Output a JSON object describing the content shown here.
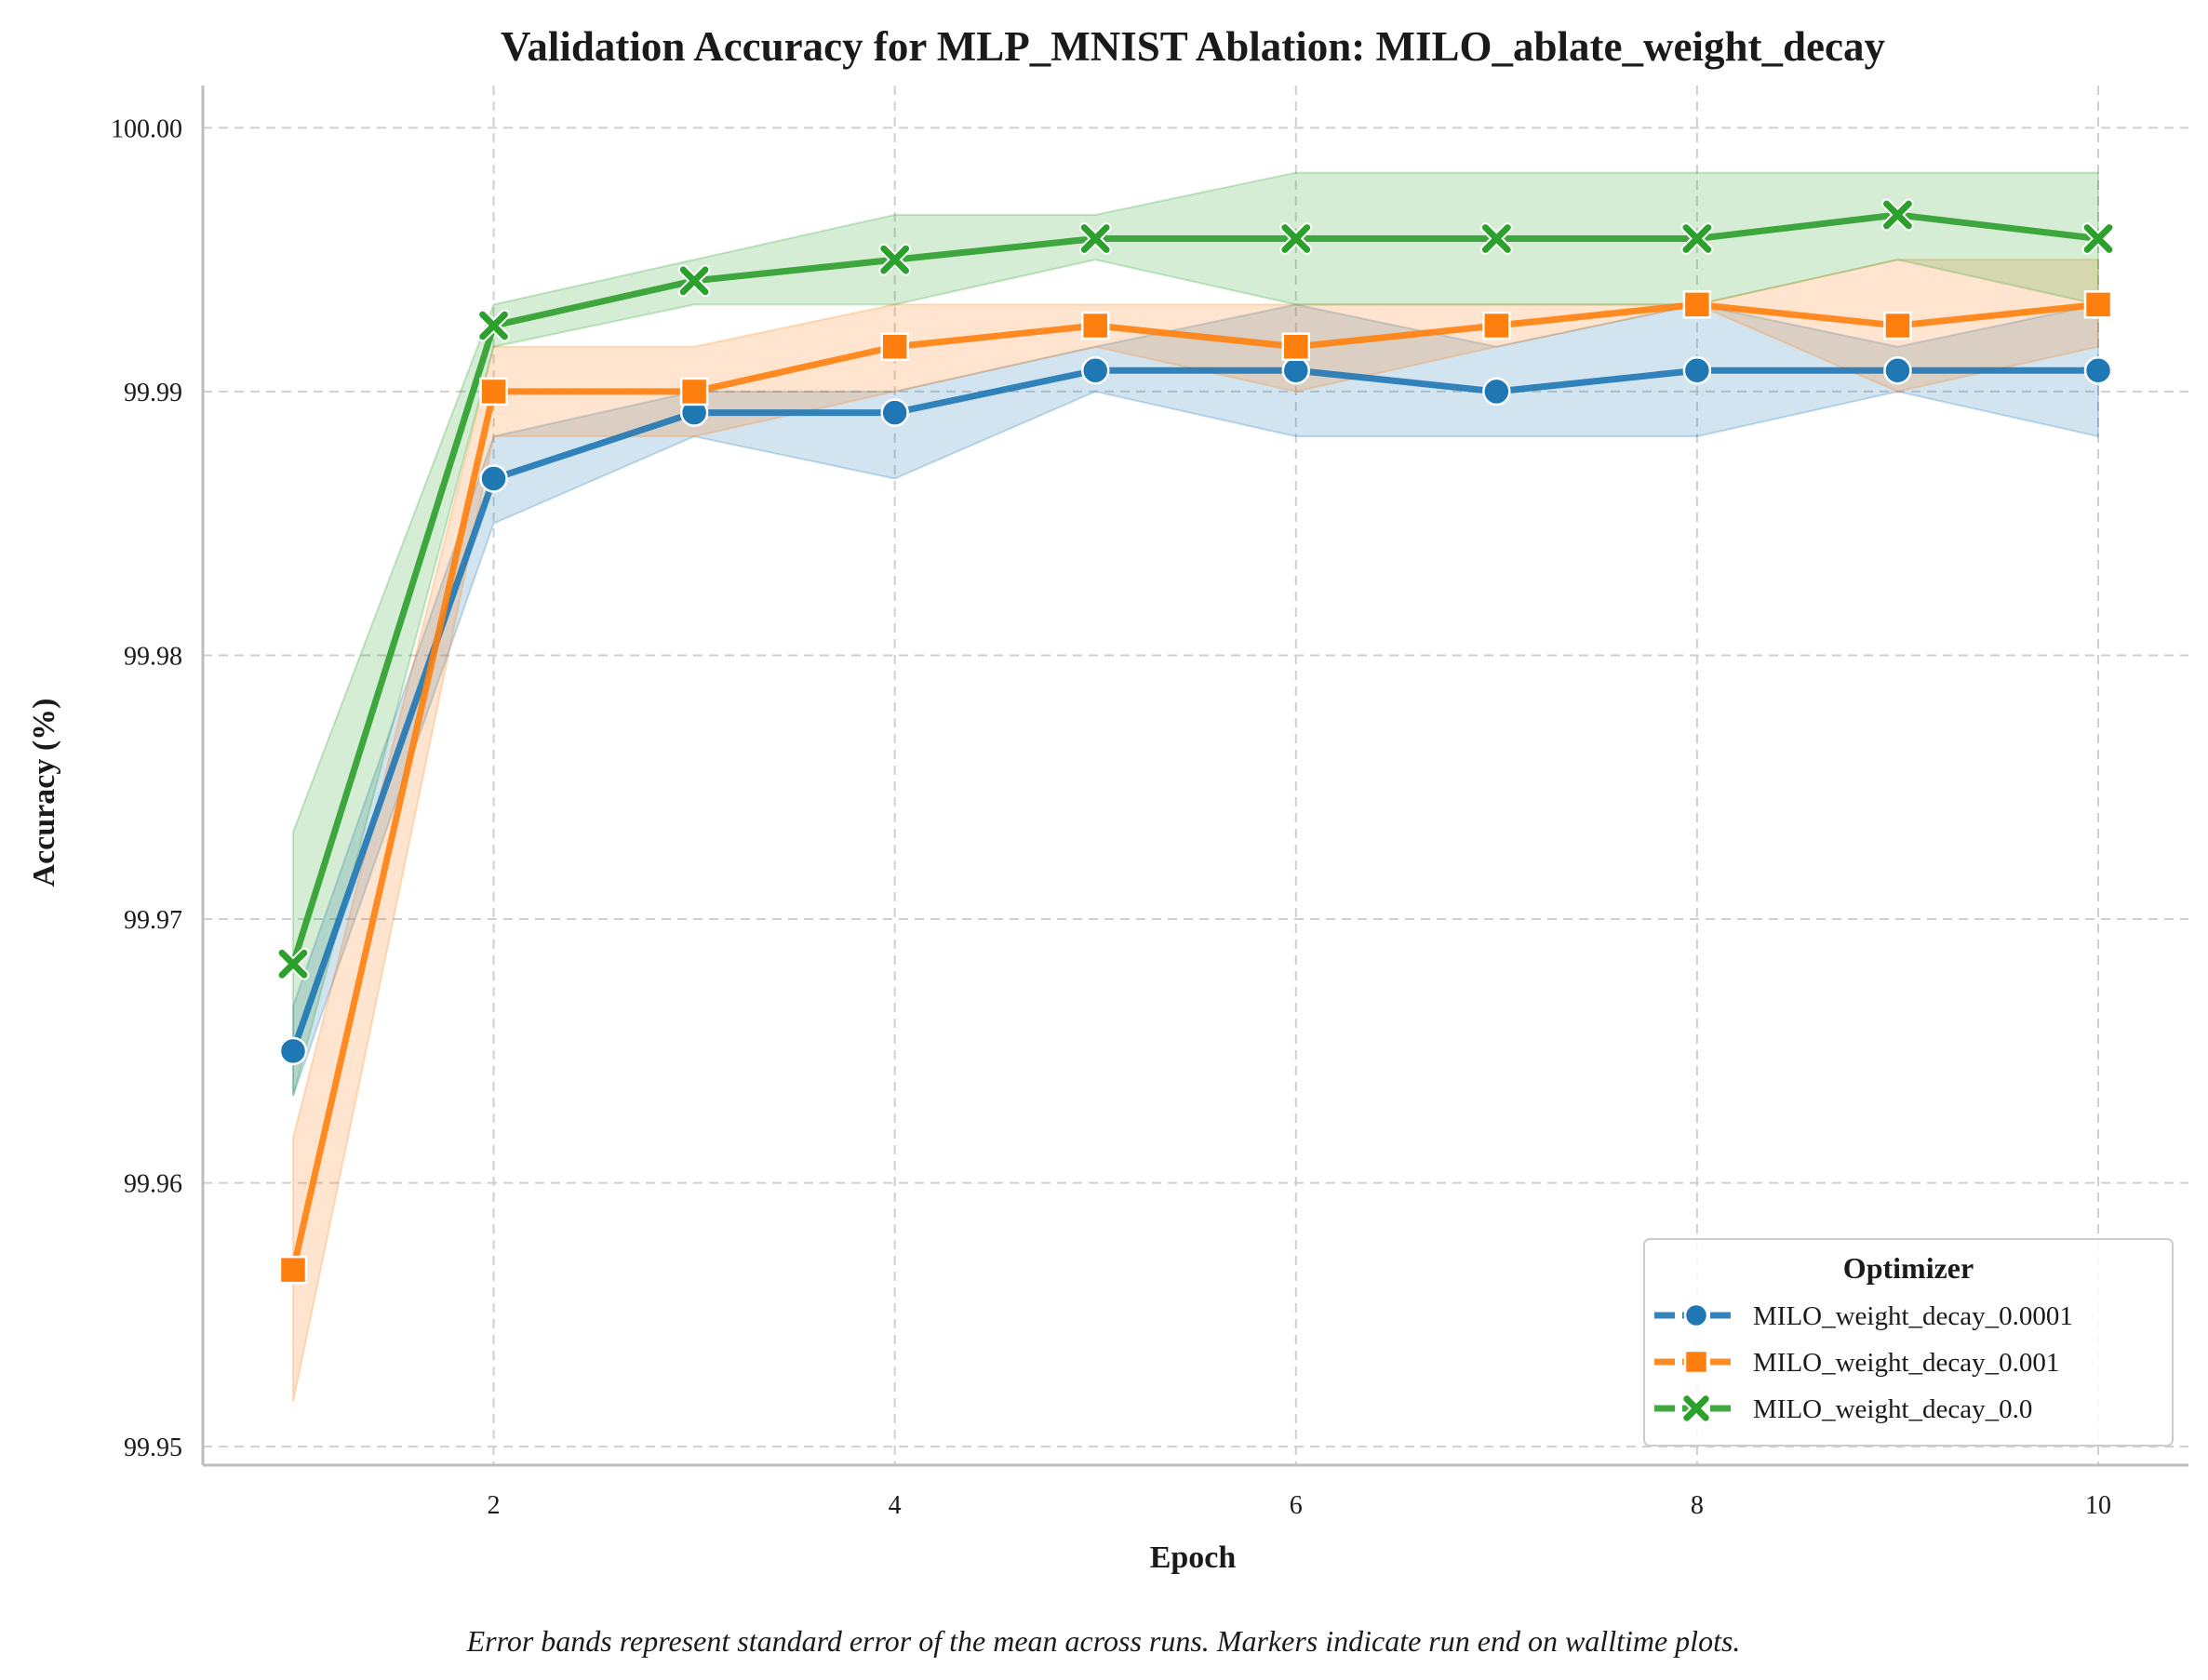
{
  "chart_data": {
    "type": "line",
    "title": "Validation Accuracy for MLP_MNIST Ablation: MILO_ablate_weight_decay",
    "xlabel": "Epoch",
    "ylabel": "Accuracy (%)",
    "caption": "Error bands represent standard error of the mean across runs. Markers indicate run end on walltime plots.",
    "xlim": [
      0.55,
      10.45
    ],
    "ylim": [
      99.9493,
      100.0016
    ],
    "xticks": [
      2,
      4,
      6,
      8,
      10
    ],
    "yticks": [
      99.95,
      99.96,
      99.97,
      99.98,
      99.99,
      100.0
    ],
    "xtick_labels": [
      "2",
      "4",
      "6",
      "8",
      "10"
    ],
    "ytick_labels": [
      "99.95",
      "99.96",
      "99.97",
      "99.98",
      "99.99",
      "100.00"
    ],
    "grid": true,
    "legend": {
      "title": "Optimizer",
      "placement": "lower-right"
    },
    "x": [
      1,
      2,
      3,
      4,
      5,
      6,
      7,
      8,
      9,
      10
    ],
    "series": [
      {
        "name": "MILO_weight_decay_0.0001",
        "color": "#1f77b4",
        "marker": "circle",
        "values": [
          99.965,
          99.9867,
          99.9892,
          99.9892,
          99.9908,
          99.9908,
          99.99,
          99.9908,
          99.9908,
          99.9908
        ],
        "lower": [
          99.9633,
          99.985,
          99.9883,
          99.9867,
          99.99,
          99.9883,
          99.9883,
          99.9883,
          99.99,
          99.9883
        ],
        "upper": [
          99.9667,
          99.9883,
          99.99,
          99.99,
          99.9917,
          99.9933,
          99.9917,
          99.9933,
          99.9917,
          99.9933
        ]
      },
      {
        "name": "MILO_weight_decay_0.001",
        "color": "#ff7f0e",
        "marker": "square",
        "values": [
          99.9567,
          99.99,
          99.99,
          99.9917,
          99.9925,
          99.9917,
          99.9925,
          99.9933,
          99.9925,
          99.9933
        ],
        "lower": [
          99.9517,
          99.9883,
          99.9883,
          99.99,
          99.9917,
          99.99,
          99.9917,
          99.9933,
          99.99,
          99.9917
        ],
        "upper": [
          99.9617,
          99.9917,
          99.9917,
          99.9933,
          99.9933,
          99.9933,
          99.9933,
          99.9933,
          99.995,
          99.995
        ]
      },
      {
        "name": "MILO_weight_decay_0.0",
        "color": "#2ca02c",
        "marker": "x",
        "values": [
          99.9683,
          99.9925,
          99.9942,
          99.995,
          99.9958,
          99.9958,
          99.9958,
          99.9958,
          99.9967,
          99.9958
        ],
        "lower": [
          99.9633,
          99.9917,
          99.9933,
          99.9933,
          99.995,
          99.9933,
          99.9933,
          99.9933,
          99.995,
          99.9933
        ],
        "upper": [
          99.9733,
          99.9933,
          99.995,
          99.9967,
          99.9967,
          99.9983,
          99.9983,
          99.9983,
          99.9983,
          99.9983
        ]
      }
    ]
  }
}
